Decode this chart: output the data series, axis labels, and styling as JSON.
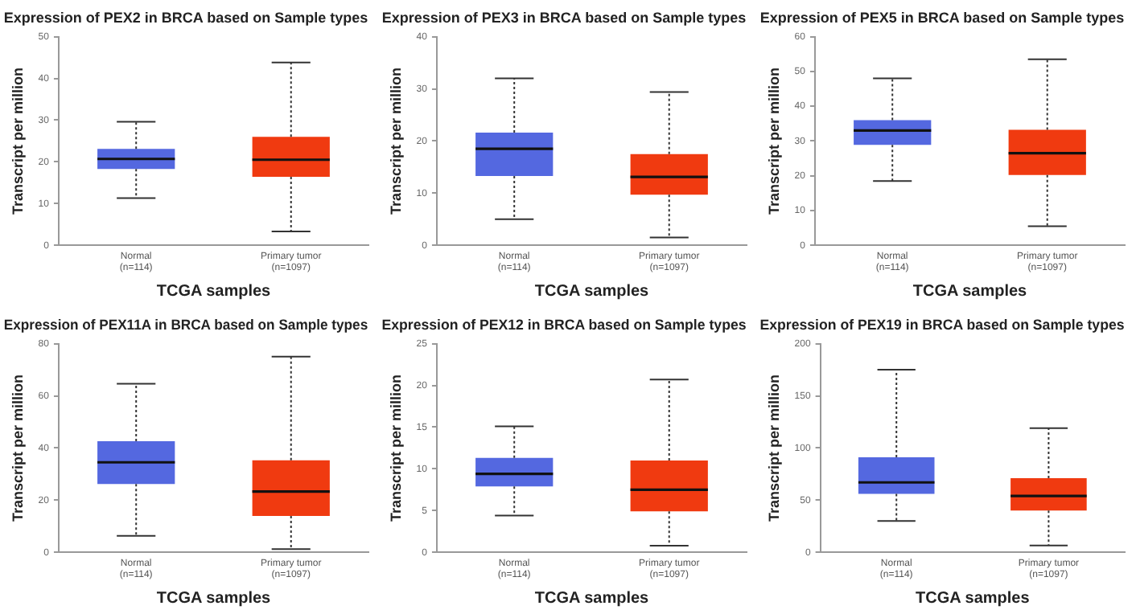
{
  "chart_data": [
    {
      "type": "box",
      "title": "Expression of PEX2 in BRCA based on Sample types",
      "xlabel": "TCGA samples",
      "ylabel": "Transcript per million",
      "categories": [
        "Normal\n(n=114)",
        "Primary tumor\n(n=1097)"
      ],
      "colors": [
        "#5468e0",
        "#f03a10"
      ],
      "ylim": [
        0,
        50
      ],
      "yticks": [
        0,
        10,
        20,
        30,
        40,
        50
      ],
      "grid": false,
      "legend": false,
      "boxes": [
        {
          "low": 11.3,
          "q1": 18.3,
          "median": 20.7,
          "q3": 23.1,
          "high": 29.6
        },
        {
          "low": 3.3,
          "q1": 16.4,
          "median": 20.5,
          "q3": 26.0,
          "high": 43.8
        }
      ]
    },
    {
      "type": "box",
      "title": "Expression of PEX3 in BRCA based on Sample types",
      "xlabel": "TCGA samples",
      "ylabel": "Transcript per million",
      "categories": [
        "Normal\n(n=114)",
        "Primary tumor\n(n=1097)"
      ],
      "colors": [
        "#5468e0",
        "#f03a10"
      ],
      "ylim": [
        0,
        40
      ],
      "yticks": [
        0,
        10,
        20,
        30,
        40
      ],
      "grid": false,
      "legend": false,
      "boxes": [
        {
          "low": 5,
          "q1": 13.3,
          "median": 18.5,
          "q3": 21.6,
          "high": 32
        },
        {
          "low": 1.5,
          "q1": 9.7,
          "median": 13.1,
          "q3": 17.5,
          "high": 29.4
        }
      ]
    },
    {
      "type": "box",
      "title": "Expression of PEX5 in BRCA based on Sample types",
      "xlabel": "TCGA samples",
      "ylabel": "Transcript per million",
      "categories": [
        "Normal\n(n=114)",
        "Primary tumor\n(n=1097)"
      ],
      "colors": [
        "#5468e0",
        "#f03a10"
      ],
      "ylim": [
        0,
        60
      ],
      "yticks": [
        0,
        10,
        20,
        30,
        40,
        50,
        60
      ],
      "grid": false,
      "legend": false,
      "boxes": [
        {
          "low": 18.5,
          "q1": 28.9,
          "median": 33,
          "q3": 36,
          "high": 48
        },
        {
          "low": 5.5,
          "q1": 20.2,
          "median": 26.5,
          "q3": 33.2,
          "high": 53.5
        }
      ]
    },
    {
      "type": "box",
      "title": "Expression of PEX11A in BRCA based on Sample types",
      "xlabel": "TCGA samples",
      "ylabel": "Transcript per million",
      "categories": [
        "Normal\n(n=114)",
        "Primary tumor\n(n=1097)"
      ],
      "colors": [
        "#5468e0",
        "#f03a10"
      ],
      "ylim": [
        0,
        80
      ],
      "yticks": [
        0,
        20,
        40,
        60,
        80
      ],
      "grid": false,
      "legend": false,
      "boxes": [
        {
          "low": 6.3,
          "q1": 26.2,
          "median": 34.5,
          "q3": 42.6,
          "high": 64.6
        },
        {
          "low": 1.2,
          "q1": 13.9,
          "median": 23.3,
          "q3": 35.3,
          "high": 75
        }
      ]
    },
    {
      "type": "box",
      "title": "Expression of PEX12 in BRCA based on Sample types",
      "xlabel": "TCGA samples",
      "ylabel": "Transcript per million",
      "categories": [
        "Normal\n(n=114)",
        "Primary tumor\n(n=1097)"
      ],
      "colors": [
        "#5468e0",
        "#f03a10"
      ],
      "ylim": [
        0,
        25
      ],
      "yticks": [
        0,
        5,
        10,
        15,
        20,
        25
      ],
      "grid": false,
      "legend": false,
      "boxes": [
        {
          "low": 4.4,
          "q1": 7.9,
          "median": 9.4,
          "q3": 11.3,
          "high": 15.1
        },
        {
          "low": 0.8,
          "q1": 4.9,
          "median": 7.5,
          "q3": 11.0,
          "high": 20.7
        }
      ]
    },
    {
      "type": "box",
      "title": "Expression of PEX19 in BRCA based on Sample types",
      "xlabel": "TCGA samples",
      "ylabel": "Transcript per million",
      "categories": [
        "Normal\n(n=114)",
        "Primary tumor\n(n=1097)"
      ],
      "colors": [
        "#5468e0",
        "#f03a10"
      ],
      "ylim": [
        0,
        200
      ],
      "yticks": [
        0,
        50,
        100,
        150,
        200
      ],
      "grid": false,
      "legend": false,
      "boxes": [
        {
          "low": 30,
          "q1": 56,
          "median": 67,
          "q3": 91,
          "high": 175
        },
        {
          "low": 6.5,
          "q1": 40,
          "median": 54,
          "q3": 71,
          "high": 119
        }
      ]
    }
  ]
}
